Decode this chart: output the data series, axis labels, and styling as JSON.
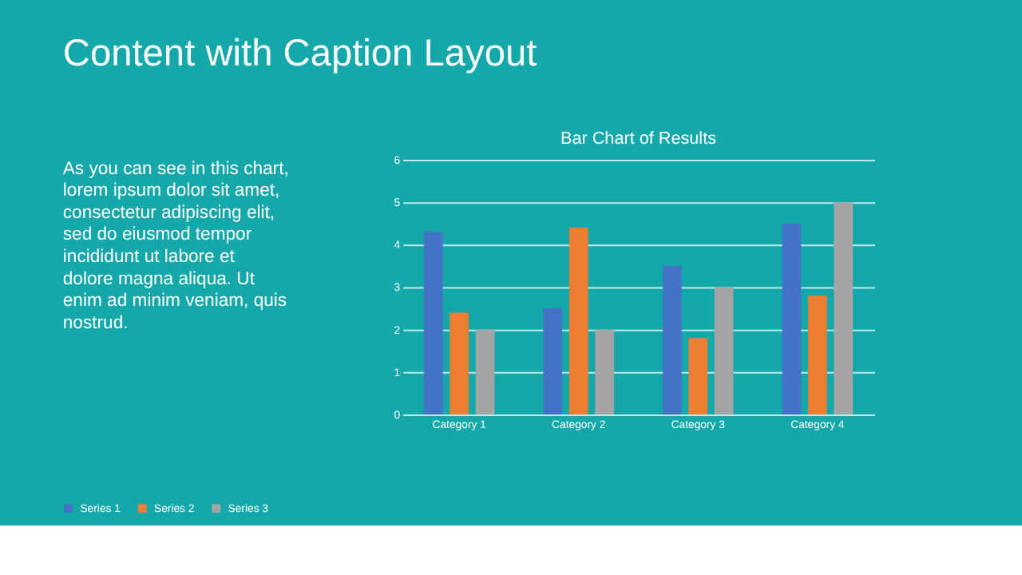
{
  "chart_data": {
    "type": "bar",
    "title": "Bar Chart of Results",
    "categories": [
      "Category 1",
      "Category 2",
      "Category 3",
      "Category 4"
    ],
    "series": [
      {
        "name": "Series 1",
        "color": "#4472c4",
        "values": [
          4.3,
          2.5,
          3.5,
          4.5
        ]
      },
      {
        "name": "Series 2",
        "color": "#ed7d31",
        "values": [
          2.4,
          4.4,
          1.8,
          2.8
        ]
      },
      {
        "name": "Series 3",
        "color": "#a5a5a5",
        "values": [
          2,
          2,
          3,
          5
        ]
      }
    ],
    "ylim": [
      0,
      6
    ],
    "yticks": [
      0,
      1,
      2,
      3,
      4,
      5,
      6
    ],
    "grid": "y",
    "legend": "bottom",
    "annotations": [
      "Content with Caption Layout",
      "As you can see in this chart,\nlorem ipsum dolor sit amet,\nconsectetur adipiscing elit,\nsed do eiusmod tempor\nincididunt ut labore et\ndolore magna aliqua. Ut\nenim ad minim veniam, quis\nnostrud."
    ]
  }
}
